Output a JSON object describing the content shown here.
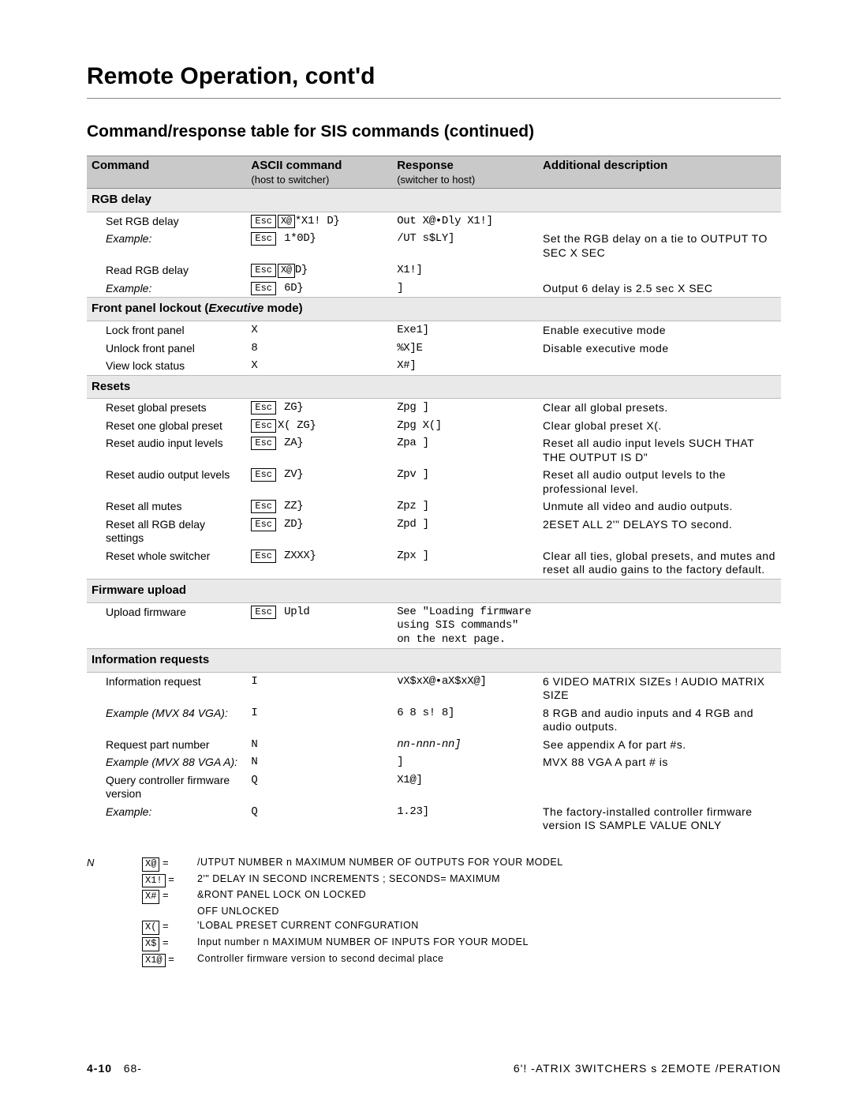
{
  "page": {
    "title": "Remote Operation, cont'd",
    "section_title": "Command/response table for SIS commands (continued)",
    "footer_left_page": "4-10",
    "footer_left_pub": "68-",
    "footer_right": "6'! -ATRIX 3WITCHERS s 2EMOTE /PERATION"
  },
  "table": {
    "headers": {
      "c1": "Command",
      "c2": "ASCII command",
      "c2_sub": "(host to switcher)",
      "c3": "Response",
      "c3_sub": "(switcher to host)",
      "c4": "Additional description"
    },
    "groups": [
      {
        "title": "RGB delay",
        "rows": [
          {
            "cmd": "Set RGB delay",
            "ascii_pre": "E",
            "ascii_mid": "X@",
            "ascii_post": "*X1! D}",
            "resp": "Out X@•Dly X1!]",
            "desc": ""
          },
          {
            "cmd_ital": "Example:",
            "ascii_pre": "E",
            "ascii_post": " 1*0D}",
            "resp": "/UT s$LY]",
            "desc": "Set the RGB delay on a tie to OUTPUT  TO  SEC   X   SEC"
          },
          {
            "cmd": "Read RGB delay",
            "ascii_pre": "E",
            "ascii_mid": "X@",
            "ascii_post": "D}",
            "resp": "X1!]",
            "desc": ""
          },
          {
            "cmd_ital": "Example:",
            "ascii_pre": "E",
            "ascii_post": " 6D}",
            "resp": "]",
            "desc": "Output 6 delay is 2.5 sec   X   SEC"
          }
        ]
      },
      {
        "title_html": "Front panel lockout (<span class=\"ital\">Executive</span> mode)",
        "rows": [
          {
            "cmd": "Lock front panel",
            "ascii": "X",
            "resp": "Exe1]",
            "desc": "Enable executive mode"
          },
          {
            "cmd": "Unlock front panel",
            "ascii": "8",
            "resp": "%X]E",
            "desc": "Disable executive mode"
          },
          {
            "cmd": "View lock status",
            "ascii": "X",
            "resp": "X#]",
            "desc": ""
          }
        ]
      },
      {
        "title": "Resets",
        "rows": [
          {
            "cmd": "Reset global presets",
            "ascii_pre": "E",
            "ascii_post": " ZG}",
            "resp": "Zpg ]",
            "desc": "Clear all global presets."
          },
          {
            "cmd": "Reset one global preset",
            "ascii_pre": "E",
            "ascii_post": "X( ZG}",
            "resp": "Zpg X(]",
            "desc": "Clear global preset X(."
          },
          {
            "cmd": "Reset audio input levels",
            "ascii_pre": "E",
            "ascii_post": " ZA}",
            "resp": "Zpa ]",
            "desc": "Reset all audio input levels SUCH THAT THE OUTPUT IS D\""
          },
          {
            "cmd": "Reset audio output levels",
            "ascii_pre": "E",
            "ascii_post": " ZV}",
            "resp": "Zpv ]",
            "desc": "Reset all audio output levels to the professional level."
          },
          {
            "cmd": "Reset all mutes",
            "ascii_pre": "E",
            "ascii_post": " ZZ}",
            "resp": "Zpz ]",
            "desc": "Unmute all video and audio outputs."
          },
          {
            "cmd": "Reset all RGB delay settings",
            "ascii_pre": "E",
            "ascii_post": " ZD}",
            "resp": "Zpd ]",
            "desc": "2ESET ALL 2'\" DELAYS TO  second."
          },
          {
            "cmd": "Reset whole switcher",
            "ascii_pre": "E",
            "ascii_post": " ZXXX}",
            "resp": "Zpx ]",
            "desc": "Clear all ties, global presets, and mutes and reset all audio gains to the factory default."
          }
        ]
      },
      {
        "title": "Firmware upload",
        "rows": [
          {
            "cmd": "Upload firmware",
            "ascii_pre": "E",
            "ascii_post": " Upld",
            "resp": "See \"Loading firmware using SIS commands\" on the next page.",
            "desc": ""
          }
        ]
      },
      {
        "title": "Information requests",
        "rows": [
          {
            "cmd": "Information request",
            "ascii": "I",
            "resp": "vX$xX@•aX$xX@]",
            "desc": "6  VIDEO  MATRIX SIZEs !  AUDIO  MATRIX SIZE"
          },
          {
            "cmd_ital": "Example (MVX 84 VGA):",
            "ascii": "I",
            "resp": "6 8 s! 8]",
            "desc": "8 RGB and audio inputs and 4 RGB and audio outputs."
          },
          {
            "cmd": "Request part number",
            "ascii": "N",
            "resp_ital": "nn-nnn-nn]",
            "desc": "See appendix A for part #s."
          },
          {
            "cmd_ital": "Example (MVX 88 VGA A):",
            "ascii": "N",
            "resp": "]",
            "desc": "MVX 88 VGA A part # is"
          },
          {
            "cmd": "Query controller firmware version",
            "ascii": "Q",
            "resp": "X1@]",
            "desc": ""
          },
          {
            "cmd_ital": "Example:",
            "ascii": "Q",
            "resp": "1.23]",
            "desc": "The factory-installed controller firmware version IS   SAMPLE VALUE ONLY"
          }
        ]
      }
    ]
  },
  "legend": {
    "note_label": "N",
    "rows": [
      {
        "key": "X@",
        "val": "/UTPUT NUMBER   n MAXIMUM NUMBER OF OUTPUTS FOR YOUR MODEL"
      },
      {
        "key": "X1!",
        "val": "2'\" DELAY IN  SECOND INCREMENTS    ; SECONDS= MAXIMUM"
      },
      {
        "key": "X#",
        "val": "&RONT PANEL LOCK  ON  LOCKED"
      },
      {
        "key": "",
        "val": "OFF  UNLOCKED"
      },
      {
        "key": "X(",
        "val": "'LOBAL PRESET       CURRENT CONϜGURATION"
      },
      {
        "key": "X$",
        "val": "Input number   n MAXIMUM NUMBER OF INPUTS FOR YOUR MODEL"
      },
      {
        "key": "X1@",
        "val": "Controller firmware version to second decimal place"
      }
    ]
  }
}
